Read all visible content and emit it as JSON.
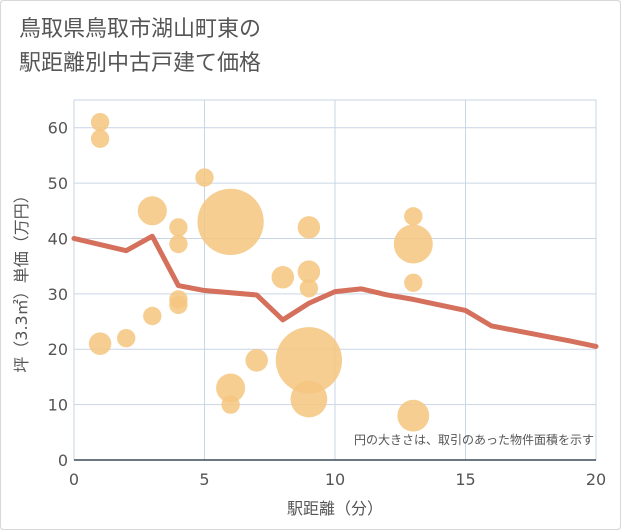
{
  "title_line1": "鳥取県鳥取市湖山町東の",
  "title_line2": "駅距離別中古戸建て価格",
  "chart_data": {
    "type": "scatter",
    "title": "鳥取県鳥取市湖山町東の駅距離別中古戸建て価格",
    "xlabel": "駅距離（分）",
    "ylabel": "坪（3.3㎡）単価（万円）",
    "xlim": [
      0,
      20
    ],
    "ylim": [
      0,
      65
    ],
    "xticks": [
      0,
      5,
      10,
      15,
      20
    ],
    "yticks": [
      0,
      10,
      20,
      30,
      40,
      50,
      60
    ],
    "grid": true,
    "note": "円の大きさは、取引のあった物件面積を示す",
    "colors": {
      "bubble": "#f5c57f",
      "line": "#d4705b",
      "grid": "#c9d6e6"
    },
    "bubbles": [
      {
        "x": 1,
        "y": 61,
        "size": 2
      },
      {
        "x": 1,
        "y": 58,
        "size": 2
      },
      {
        "x": 1,
        "y": 21,
        "size": 3
      },
      {
        "x": 2,
        "y": 22,
        "size": 2
      },
      {
        "x": 3,
        "y": 45,
        "size": 5
      },
      {
        "x": 3,
        "y": 26,
        "size": 2
      },
      {
        "x": 4,
        "y": 42,
        "size": 2
      },
      {
        "x": 4,
        "y": 39,
        "size": 2
      },
      {
        "x": 4,
        "y": 29,
        "size": 2
      },
      {
        "x": 4,
        "y": 28,
        "size": 2
      },
      {
        "x": 5,
        "y": 51,
        "size": 2
      },
      {
        "x": 6,
        "y": 43,
        "size": 26
      },
      {
        "x": 6,
        "y": 13,
        "size": 5
      },
      {
        "x": 6,
        "y": 10,
        "size": 2
      },
      {
        "x": 7,
        "y": 18,
        "size": 3
      },
      {
        "x": 8,
        "y": 33,
        "size": 3
      },
      {
        "x": 9,
        "y": 42,
        "size": 3
      },
      {
        "x": 9,
        "y": 34,
        "size": 3
      },
      {
        "x": 9,
        "y": 31,
        "size": 2
      },
      {
        "x": 9,
        "y": 18,
        "size": 26
      },
      {
        "x": 9,
        "y": 11,
        "size": 8
      },
      {
        "x": 13,
        "y": 44,
        "size": 2
      },
      {
        "x": 13,
        "y": 39,
        "size": 9
      },
      {
        "x": 13,
        "y": 32,
        "size": 2
      },
      {
        "x": 13,
        "y": 8,
        "size": 6
      }
    ],
    "trend": {
      "x": [
        0,
        2,
        3,
        4,
        5,
        7,
        8,
        9,
        10,
        11,
        12,
        13,
        14,
        15,
        16,
        17,
        18,
        19,
        20
      ],
      "y": [
        40,
        37.8,
        40.4,
        31.5,
        30.6,
        29.8,
        25.3,
        28.3,
        30.4,
        30.9,
        29.8,
        29,
        28,
        27,
        24.2,
        23.3,
        22.4,
        21.5,
        20.5
      ]
    }
  }
}
